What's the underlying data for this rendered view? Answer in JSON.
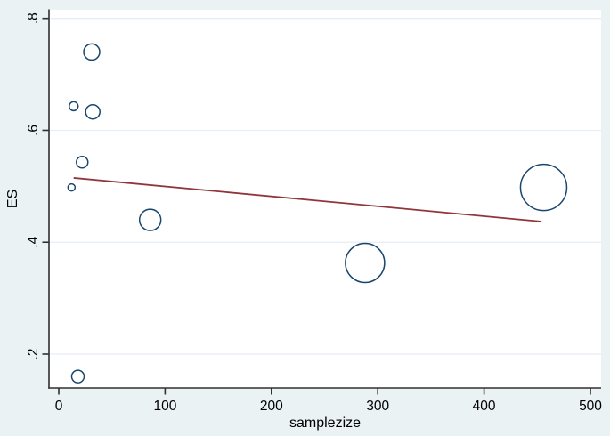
{
  "figure": {
    "background_color": "#eaf2f3",
    "plot_background_color": "#ffffff",
    "grid_color": "#e6eef4",
    "axis_color": "#303030",
    "text_color": "#000000",
    "marker_color": "#1a476f",
    "fit_line_color": "#90353b"
  },
  "chart_data": {
    "type": "scatter",
    "subtype": "bubble",
    "title": "",
    "xlabel": "samplezize",
    "ylabel": "ES",
    "xlim": [
      0,
      500
    ],
    "ylim": [
      0.2,
      0.8
    ],
    "grid": true,
    "x_ticks": [
      0,
      100,
      200,
      300,
      400,
      500
    ],
    "x_tick_labels": [
      "0",
      "100",
      "200",
      "300",
      "400",
      "500"
    ],
    "y_ticks": [
      0.2,
      0.4,
      0.6,
      0.8
    ],
    "y_tick_labels": [
      ".2",
      ".4",
      ".6",
      ".8"
    ],
    "points": [
      {
        "x": 31,
        "y": 0.74,
        "r": 9
      },
      {
        "x": 14,
        "y": 0.643,
        "r": 5
      },
      {
        "x": 32,
        "y": 0.633,
        "r": 8
      },
      {
        "x": 22,
        "y": 0.543,
        "r": 6.5
      },
      {
        "x": 12,
        "y": 0.498,
        "r": 4
      },
      {
        "x": 86,
        "y": 0.44,
        "r": 12
      },
      {
        "x": 288,
        "y": 0.363,
        "r": 22
      },
      {
        "x": 456,
        "y": 0.498,
        "r": 26
      },
      {
        "x": 18,
        "y": 0.16,
        "r": 7
      }
    ],
    "fit_line": {
      "x1": 14,
      "y1": 0.515,
      "x2": 454,
      "y2": 0.437
    },
    "legend": null
  }
}
